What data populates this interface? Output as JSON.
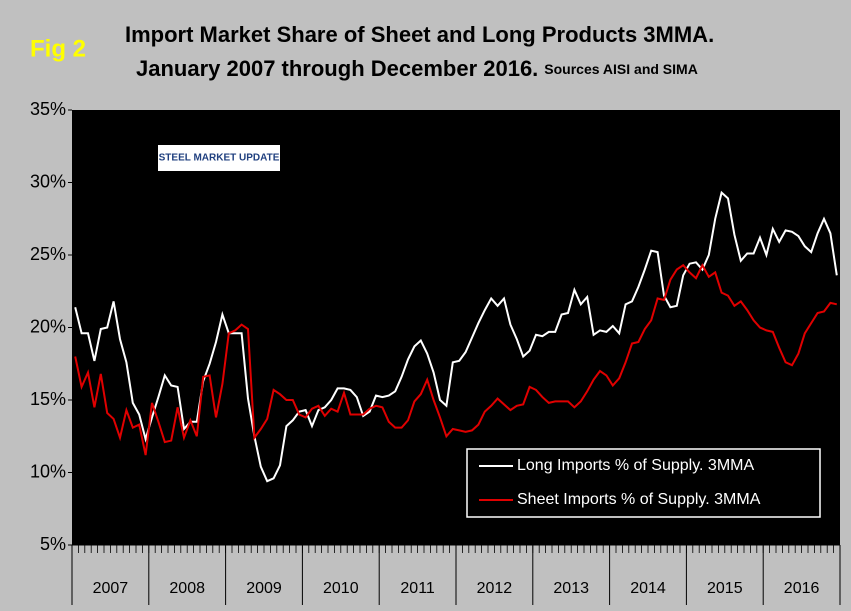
{
  "chart_data": {
    "type": "line",
    "label": "Fig 2",
    "title": "Import Market Share of Sheet and Long Products 3MMA.",
    "subtitle": "January 2007 through December 2016.",
    "source": "Sources AISI and SIMA",
    "logo": "STEEL MARKET UPDATE",
    "years": [
      "2007",
      "2008",
      "2009",
      "2010",
      "2011",
      "2012",
      "2013",
      "2014",
      "2015",
      "2016"
    ],
    "ylim": [
      5,
      35
    ],
    "yticks": [
      {
        "value": 5,
        "label": "5%"
      },
      {
        "value": 10,
        "label": "10%"
      },
      {
        "value": 15,
        "label": "15%"
      },
      {
        "value": 20,
        "label": "20%"
      },
      {
        "value": 25,
        "label": "25%"
      },
      {
        "value": 30,
        "label": "30%"
      },
      {
        "value": 35,
        "label": "35%"
      }
    ],
    "legend": "lower right",
    "series": [
      {
        "name": "Long Imports % of Supply. 3MMA",
        "color": "#ffffff",
        "values": [
          21.4,
          19.6,
          19.6,
          17.7,
          19.9,
          20.0,
          21.8,
          19.2,
          17.6,
          14.8,
          14.0,
          12.3,
          13.8,
          15.2,
          16.7,
          16.0,
          15.9,
          13.0,
          13.5,
          13.5,
          16.3,
          17.5,
          19.0,
          20.9,
          19.6,
          19.6,
          19.6,
          15.1,
          12.5,
          10.4,
          9.4,
          9.6,
          10.5,
          13.2,
          13.6,
          14.2,
          14.3,
          13.2,
          14.3,
          14.5,
          15.0,
          15.8,
          15.8,
          15.7,
          15.2,
          13.9,
          14.2,
          15.3,
          15.2,
          15.3,
          15.6,
          16.6,
          17.8,
          18.7,
          19.1,
          18.2,
          16.9,
          15.0,
          14.6,
          17.6,
          17.7,
          18.3,
          19.3,
          20.3,
          21.2,
          22.0,
          21.5,
          22.0,
          20.2,
          19.2,
          18.0,
          18.4,
          19.5,
          19.4,
          19.7,
          19.7,
          20.9,
          21.0,
          22.6,
          21.6,
          22.1,
          19.5,
          19.8,
          19.7,
          20.1,
          19.6,
          21.6,
          21.8,
          22.8,
          24.0,
          25.3,
          25.2,
          22.2,
          21.4,
          21.5,
          23.6,
          24.4,
          24.5,
          24.0,
          25.0,
          27.5,
          29.3,
          28.9,
          26.4,
          24.6,
          25.1,
          25.1,
          26.2,
          25.0,
          26.8,
          25.9,
          26.7,
          26.6,
          26.3,
          25.6,
          25.2,
          26.5,
          27.5,
          26.5,
          23.6
        ]
      },
      {
        "name": "Sheet Imports % of Supply. 3MMA",
        "color": "#e00000",
        "values": [
          18.0,
          15.9,
          16.9,
          14.5,
          16.8,
          14.1,
          13.7,
          12.4,
          14.3,
          13.1,
          13.3,
          11.2,
          14.8,
          13.5,
          12.1,
          12.2,
          14.5,
          12.4,
          13.6,
          12.5,
          16.6,
          16.7,
          13.8,
          16.1,
          19.6,
          19.8,
          20.2,
          19.9,
          12.4,
          13.0,
          13.7,
          15.7,
          15.4,
          15.0,
          15.0,
          14.0,
          13.8,
          14.4,
          14.6,
          13.9,
          14.4,
          14.2,
          15.5,
          14.0,
          14.0,
          14.0,
          14.4,
          14.6,
          14.5,
          13.5,
          13.1,
          13.1,
          13.6,
          14.9,
          15.4,
          16.4,
          15.0,
          13.8,
          12.5,
          13.0,
          12.9,
          12.8,
          12.9,
          13.3,
          14.2,
          14.6,
          15.1,
          14.7,
          14.3,
          14.6,
          14.7,
          15.9,
          15.7,
          15.2,
          14.8,
          14.9,
          14.9,
          14.9,
          14.5,
          14.9,
          15.6,
          16.4,
          17.0,
          16.7,
          16.0,
          16.5,
          17.6,
          18.9,
          19.0,
          19.9,
          20.5,
          22.0,
          21.9,
          23.3,
          24.0,
          24.3,
          23.8,
          23.4,
          24.3,
          23.5,
          23.8,
          22.4,
          22.2,
          21.5,
          21.8,
          21.2,
          20.5,
          20.0,
          19.8,
          19.7,
          18.6,
          17.6,
          17.4,
          18.2,
          19.6,
          20.3,
          21.0,
          21.1,
          21.7,
          21.6
        ]
      }
    ]
  }
}
